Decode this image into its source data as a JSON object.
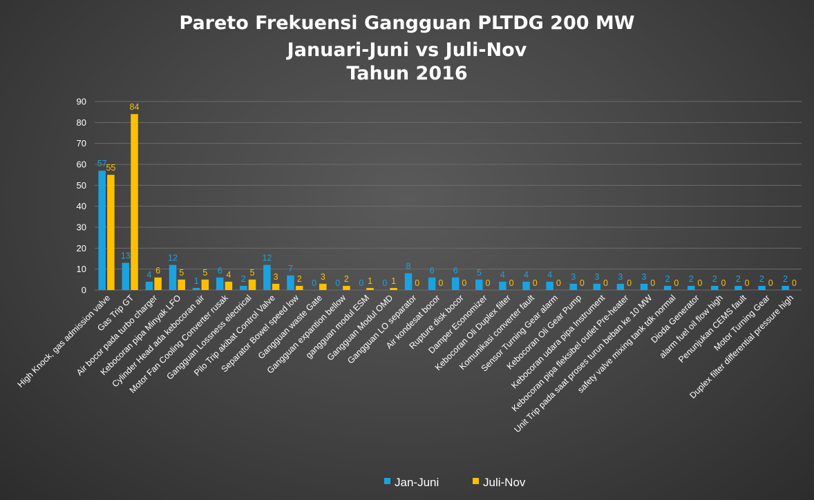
{
  "chart_data": {
    "type": "bar",
    "title": [
      "Pareto Frekuensi Gangguan PLTDG 200 MW",
      "Januari-Juni  vs  Juli-Nov",
      "Tahun 2016"
    ],
    "xlabel": "",
    "ylabel": "",
    "ylim": [
      0,
      90
    ],
    "yticks": [
      0,
      10,
      20,
      30,
      40,
      50,
      60,
      70,
      80,
      90
    ],
    "grid": true,
    "legend_position": "bottom",
    "categories": [
      "High Knock, gas admission valve",
      "Gas Trip GT",
      "Air bocor pada turbo charger",
      "Kebocoran pipa Minyak LFO",
      "Cylinder Head ada kebocoran air",
      "Motor Fan Cooling Converter rusak",
      "Gangguan Lossness electrical",
      "Pilo Trip akibat Control Valve",
      "Separator Bowel  speed low",
      "Gangguan waste Gate",
      "Gangguan expantion bellow",
      "gangguan modul ESM",
      "Gangguan Modul OMD",
      "Gangguan LO separator",
      "Air kondesat bocor",
      "Rupture disk bocor",
      "Damper Economizer",
      "Kebocoran Oli Duplex filter",
      "Komunikasi converter fault",
      "Sensor Turning Gear alarm",
      "Kebocoran Oli Gear Pump",
      "Kebocoran udara pipa Instrument",
      "Kebocoran pipa fleksibel outlet Pre-heater",
      "Unit Trip pada saat proses turun beban ke 10 MW",
      "safety valve mixing tank tdk normal",
      "Dioda Generator",
      "alarm fuel oil flow high",
      "Penunjukan CEMS fault",
      "Motor Turning Gear",
      "Duplex filter differential pressure high"
    ],
    "series": [
      {
        "name": "Jan-Juni",
        "color": "#1aa3e0",
        "values": [
          57,
          13,
          4,
          12,
          1,
          6,
          2,
          12,
          7,
          0,
          0,
          0,
          0,
          8,
          6,
          6,
          5,
          4,
          4,
          4,
          3,
          3,
          3,
          3,
          2,
          2,
          2,
          2,
          2,
          2
        ]
      },
      {
        "name": "Juli-Nov",
        "color": "#ffc000",
        "values": [
          55,
          84,
          6,
          5,
          5,
          4,
          5,
          3,
          2,
          3,
          2,
          1,
          1,
          0,
          0,
          0,
          0,
          0,
          0,
          0,
          0,
          0,
          0,
          0,
          0,
          0,
          0,
          0,
          0,
          0
        ]
      }
    ]
  }
}
